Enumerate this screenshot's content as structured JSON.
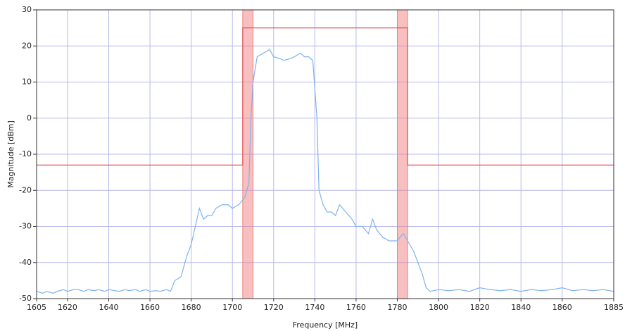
{
  "chart_data": {
    "type": "line",
    "xlabel": "Frequency [MHz]",
    "ylabel": "Magnitude [dBm]",
    "xlim": [
      1605,
      1885
    ],
    "ylim": [
      -50,
      30
    ],
    "xticks": [
      1605,
      1620,
      1640,
      1660,
      1680,
      1700,
      1720,
      1740,
      1760,
      1780,
      1800,
      1820,
      1840,
      1860,
      1885
    ],
    "yticks": [
      -50,
      -40,
      -30,
      -20,
      -10,
      0,
      10,
      20,
      30
    ],
    "grid": true,
    "shaded_bands": [
      [
        1705,
        1710
      ],
      [
        1780,
        1785
      ]
    ],
    "band_color": "#f08080",
    "series": [
      {
        "color": "#7fb2ee",
        "x": [
          1605,
          1608,
          1610,
          1613,
          1615,
          1618,
          1620,
          1623,
          1625,
          1628,
          1630,
          1633,
          1635,
          1638,
          1640,
          1643,
          1645,
          1648,
          1650,
          1653,
          1655,
          1658,
          1660,
          1663,
          1665,
          1668,
          1670,
          1672,
          1675,
          1678,
          1680,
          1682,
          1684,
          1686,
          1688,
          1690,
          1692,
          1695,
          1698,
          1700,
          1703,
          1706,
          1708,
          1709,
          1710,
          1712,
          1715,
          1718,
          1720,
          1723,
          1725,
          1728,
          1730,
          1733,
          1735,
          1737,
          1739,
          1740,
          1741,
          1742,
          1744,
          1746,
          1748,
          1750,
          1752,
          1755,
          1758,
          1760,
          1763,
          1766,
          1768,
          1770,
          1773,
          1776,
          1778,
          1780,
          1782,
          1783,
          1785,
          1787,
          1788,
          1790,
          1792,
          1794,
          1796,
          1800,
          1805,
          1810,
          1815,
          1820,
          1825,
          1830,
          1835,
          1840,
          1845,
          1850,
          1855,
          1860,
          1865,
          1870,
          1875,
          1880,
          1885
        ],
        "values": [
          -48,
          -48.5,
          -48,
          -48.5,
          -48,
          -47.5,
          -48,
          -47.5,
          -47.5,
          -48,
          -47.5,
          -47.8,
          -47.5,
          -48,
          -47.5,
          -47.8,
          -48,
          -47.5,
          -47.8,
          -47.5,
          -48,
          -47.5,
          -48,
          -47.8,
          -48,
          -47.5,
          -48,
          -45,
          -44,
          -38,
          -35,
          -30,
          -25,
          -28,
          -27,
          -27,
          -25,
          -24,
          -24,
          -25,
          -24,
          -22,
          -18,
          0,
          10,
          17,
          18,
          19,
          17,
          16.5,
          16,
          16.5,
          17,
          18,
          17,
          17,
          16,
          8,
          0,
          -20,
          -24,
          -26,
          -26,
          -27,
          -24,
          -26,
          -28,
          -30,
          -30,
          -32,
          -28,
          -31,
          -33,
          -34,
          -34,
          -34,
          -32.5,
          -32,
          -34,
          -36,
          -37,
          -40,
          -43,
          -47,
          -48,
          -47.5,
          -47.8,
          -47.5,
          -48,
          -47,
          -47.5,
          -47.8,
          -47.5,
          -48,
          -47.5,
          -47.8,
          -47.5,
          -47,
          -47.8,
          -47.5,
          -47.8,
          -47.5,
          -48
        ]
      },
      {
        "color": "#e05050",
        "x": [
          1605,
          1705,
          1705,
          1785,
          1785,
          1885
        ],
        "values": [
          -13,
          -13,
          25,
          25,
          -13,
          -13
        ]
      }
    ]
  }
}
